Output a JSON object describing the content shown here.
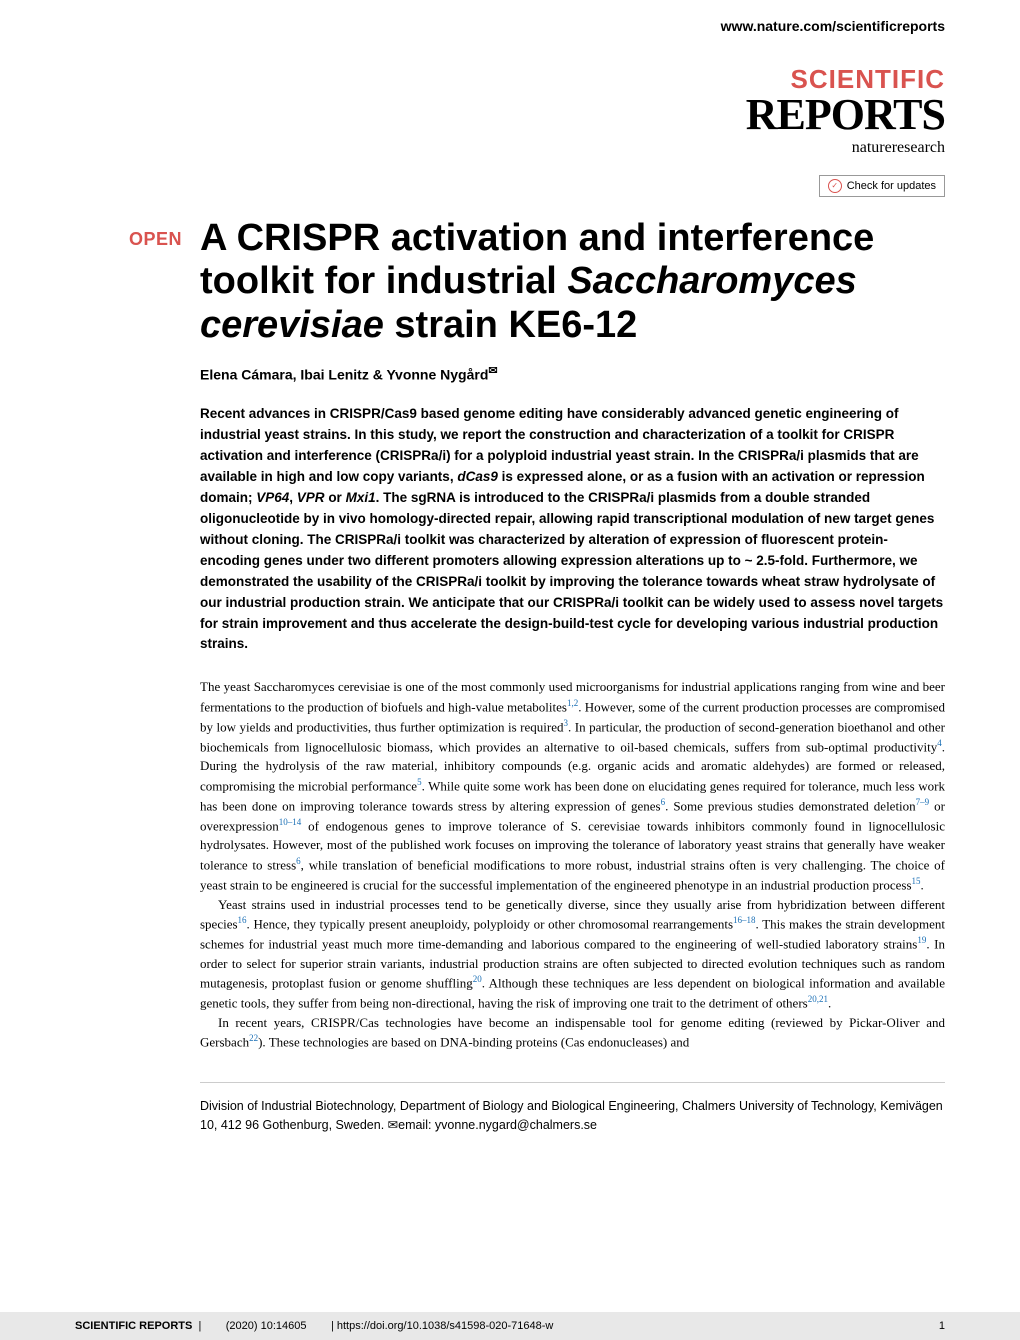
{
  "header": {
    "url": "www.nature.com/scientificreports"
  },
  "journal": {
    "line1": "SCIENTIFIC",
    "line2": "REPORTS",
    "line3": "natureresearch"
  },
  "check_updates": {
    "label": "Check for updates"
  },
  "badge": {
    "open": "OPEN"
  },
  "title": "A CRISPR activation and interference toolkit for industrial Saccharomyces cerevisiae strain KE6-12",
  "authors": "Elena Cámara, Ibai Lenitz & Yvonne Nygård",
  "abstract": "Recent advances in CRISPR/Cas9 based genome editing have considerably advanced genetic engineering of industrial yeast strains. In this study, we report the construction and characterization of a toolkit for CRISPR activation and interference (CRISPRa/i) for a polyploid industrial yeast strain. In the CRISPRa/i plasmids that are available in high and low copy variants, dCas9 is expressed alone, or as a fusion with an activation or repression domain; VP64, VPR or Mxi1. The sgRNA is introduced to the CRISPRa/i plasmids from a double stranded oligonucleotide by in vivo homology-directed repair, allowing rapid transcriptional modulation of new target genes without cloning. The CRISPRa/i toolkit was characterized by alteration of expression of fluorescent protein-encoding genes under two different promoters allowing expression alterations up to ~ 2.5-fold. Furthermore, we demonstrated the usability of the CRISPRa/i toolkit by improving the tolerance towards wheat straw hydrolysate of our industrial production strain. We anticipate that our CRISPRa/i toolkit can be widely used to assess novel targets for strain improvement and thus accelerate the design-build-test cycle for developing various industrial production strains.",
  "body": {
    "p1": "The yeast Saccharomyces cerevisiae is one of the most commonly used microorganisms for industrial applications ranging from wine and beer fermentations to the production of biofuels and high-value metabolites",
    "p1b": ". However, some of the current production processes are compromised by low yields and productivities, thus further optimization is required",
    "p1c": ". In particular, the production of second-generation bioethanol and other biochemicals from lignocellulosic biomass, which provides an alternative to oil-based chemicals, suffers from sub-optimal productivity",
    "p1d": ". During the hydrolysis of the raw material, inhibitory compounds (e.g. organic acids and aromatic aldehydes) are formed or released, compromising the microbial performance",
    "p1e": ". While quite some work has been done on elucidating genes required for tolerance, much less work has been done on improving tolerance towards stress by altering expression of genes",
    "p1f": ". Some previous studies demonstrated deletion",
    "p1g": " or overexpression",
    "p1h": " of endogenous genes to improve tolerance of S. cerevisiae towards inhibitors commonly found in lignocellulosic hydrolysates. However, most of the published work focuses on improving the tolerance of laboratory yeast strains that generally have weaker tolerance to stress",
    "p1i": ", while translation of beneficial modifications to more robust, industrial strains often is very challenging. The choice of yeast strain to be engineered is crucial for the successful implementation of the engineered phenotype in an industrial production process",
    "p1j": ".",
    "p2a": "Yeast strains used in industrial processes tend to be genetically diverse, since they usually arise from hybridization between different species",
    "p2b": ". Hence, they typically present aneuploidy, polyploidy or other chromosomal rearrangements",
    "p2c": ". This makes the strain development schemes for industrial yeast much more time-demanding and laborious compared to the engineering of well-studied laboratory strains",
    "p2d": ". In order to select for superior strain variants, industrial production strains are often subjected to directed evolution techniques such as random mutagenesis, protoplast fusion or genome shuffling",
    "p2e": ". Although these techniques are less dependent on biological information and available genetic tools, they suffer from being non-directional, having the risk of improving one trait to the detriment of others",
    "p2f": ".",
    "p3a": "In recent years, CRISPR/Cas technologies have become an indispensable tool for genome editing (reviewed by Pickar-Oliver and Gersbach",
    "p3b": "). These technologies are based on DNA-binding proteins (Cas endonucleases) and"
  },
  "refs": {
    "r1": "1,2",
    "r2": "3",
    "r3": "4",
    "r4": "5",
    "r5": "6",
    "r6": "7–9",
    "r7": "10–14",
    "r8": "6",
    "r9": "15",
    "r10": "16",
    "r11": "16–18",
    "r12": "19",
    "r13": "20",
    "r14": "20,21",
    "r15": "22"
  },
  "affiliation": "Division of Industrial Biotechnology, Department of Biology and Biological Engineering, Chalmers University of Technology, Kemivägen 10, 412 96 Gothenburg, Sweden. ✉email: yvonne.nygard@chalmers.se",
  "footer": {
    "journal": "SCIENTIFIC REPORTS",
    "citation": "(2020) 10:14605",
    "doi": "https://doi.org/10.1038/s41598-020-71648-w",
    "page": "1"
  },
  "colors": {
    "accent_red": "#d9534f",
    "link_blue": "#1a6fb5",
    "footer_bg": "#e8e8e8",
    "text": "#000000",
    "bg": "#ffffff"
  }
}
